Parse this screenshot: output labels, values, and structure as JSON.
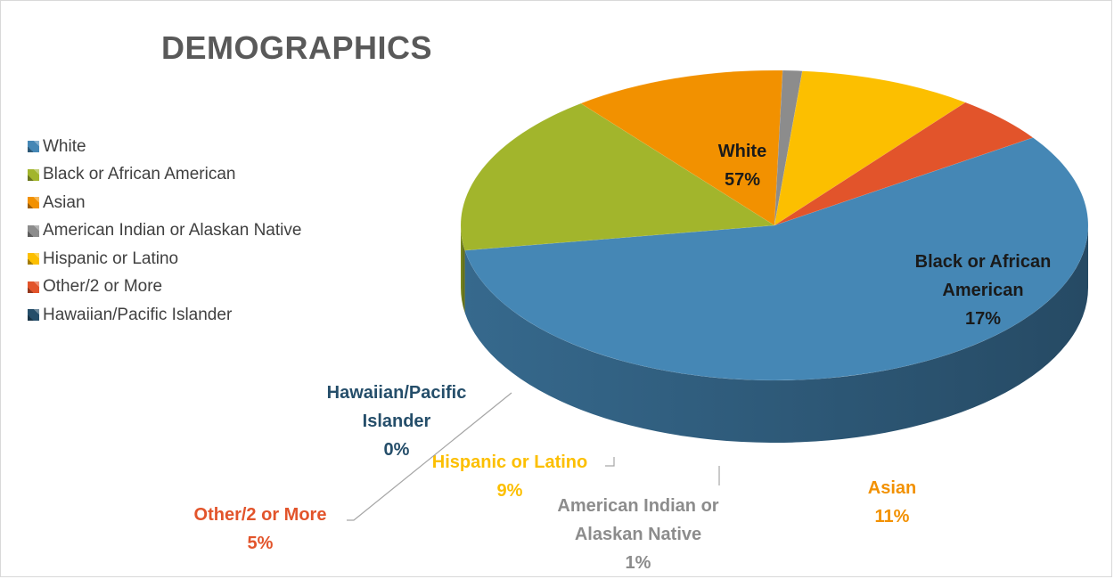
{
  "chart_data": {
    "type": "pie",
    "title": "DEMOGRAPHICS",
    "legend_position": "left",
    "slices": [
      {
        "name": "White",
        "value": 57,
        "label": "57%",
        "color": "#4587b5"
      },
      {
        "name": "Black or African American",
        "value": 17,
        "label": "17%",
        "color": "#a2b52c"
      },
      {
        "name": "Asian",
        "value": 11,
        "label": "11%",
        "color": "#f29100"
      },
      {
        "name": "American Indian or Alaskan Native",
        "value": 1,
        "label": "1%",
        "color": "#8c8c8c"
      },
      {
        "name": "Hispanic or Latino",
        "value": 9,
        "label": "9%",
        "color": "#fcbf00"
      },
      {
        "name": "Other/2 or More",
        "value": 5,
        "label": "5%",
        "color": "#e2542b"
      },
      {
        "name": "Hawaiian/Pacific Islander",
        "value": 0,
        "label": "0%",
        "color": "#254e6a"
      }
    ]
  },
  "labels": {
    "white": "White",
    "black": [
      "Black or African",
      "American"
    ],
    "asian": "Asian",
    "american_indian": [
      "American Indian or",
      "Alaskan Native"
    ],
    "hispanic": "Hispanic or Latino",
    "other": "Other/2 or More",
    "hawaiian": [
      "Hawaiian/Pacific",
      "Islander"
    ]
  }
}
